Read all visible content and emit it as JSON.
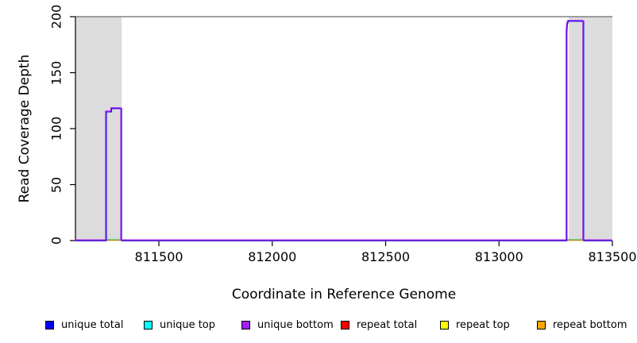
{
  "chart_data": {
    "type": "line",
    "title": "",
    "xlabel": "Coordinate in Reference Genome",
    "ylabel": "Read Coverage Depth",
    "xlim": [
      811132,
      813500
    ],
    "ylim": [
      0,
      200
    ],
    "x_ticks": [
      {
        "value": 811500,
        "label": "811500"
      },
      {
        "value": 812000,
        "label": "812000"
      },
      {
        "value": 812500,
        "label": "812500"
      },
      {
        "value": 813000,
        "label": "813000"
      },
      {
        "value": 813500,
        "label": "813500"
      }
    ],
    "y_ticks": [
      {
        "value": 0,
        "label": "0"
      },
      {
        "value": 50,
        "label": "50"
      },
      {
        "value": 100,
        "label": "100"
      },
      {
        "value": 150,
        "label": "150"
      },
      {
        "value": 200,
        "label": "200"
      }
    ],
    "grid": false,
    "legend_position": "bottom",
    "axis_color": "#000000",
    "shaded_regions": [
      {
        "x1": 811132,
        "x2": 811336,
        "y1": 0,
        "y2": 200,
        "color": "#dcdcdc"
      },
      {
        "x1": 813308,
        "x2": 813500,
        "y1": 0,
        "y2": 200,
        "color": "#dcdcdc"
      }
    ],
    "hline": {
      "y": 200,
      "color": "#808080",
      "width": 1.6
    },
    "series": [
      {
        "name": "unique total",
        "color": "#0000ff",
        "line_width": 1.4,
        "offset": [
          0,
          0
        ],
        "segments": [
          [
            [
              811132,
              0
            ],
            [
              811268,
              0
            ],
            [
              811268,
              115
            ],
            [
              811291,
              115
            ],
            [
              811291,
              118
            ],
            [
              811335,
              118
            ],
            [
              811335,
              0
            ],
            [
              813299,
              0
            ],
            [
              813299,
              186
            ],
            [
              813301,
              193
            ],
            [
              813306,
              196
            ],
            [
              813373,
              196
            ],
            [
              813373,
              0
            ],
            [
              813500,
              0
            ]
          ]
        ]
      },
      {
        "name": "unique top",
        "color": "#00ffff",
        "render_color": "#84cc84",
        "line_width": 1.4,
        "offset": [
          0,
          0
        ],
        "segments": [
          [
            [
              811268,
              1
            ],
            [
              811335,
              1
            ]
          ],
          [
            [
              813299,
              1
            ],
            [
              813373,
              1
            ]
          ]
        ]
      },
      {
        "name": "unique bottom",
        "color": "#a020f0",
        "line_width": 1.4,
        "offset": [
          -0.8,
          -0.8
        ],
        "segments": [
          [
            [
              811132,
              0
            ],
            [
              811268,
              0
            ],
            [
              811268,
              115
            ],
            [
              811291,
              115
            ],
            [
              811291,
              118
            ],
            [
              811335,
              118
            ],
            [
              811335,
              0
            ],
            [
              813299,
              0
            ],
            [
              813299,
              186
            ],
            [
              813301,
              193
            ],
            [
              813306,
              196
            ],
            [
              813373,
              196
            ],
            [
              813373,
              0
            ],
            [
              813500,
              0
            ]
          ]
        ]
      },
      {
        "name": "repeat total",
        "color": "#ff0000",
        "line_width": 1.2,
        "offset": [
          0,
          0.4
        ],
        "segments": [
          [
            [
              811132,
              0
            ],
            [
              813500,
              0
            ]
          ]
        ]
      },
      {
        "name": "repeat top",
        "color": "#ffff00",
        "render_color": "#efe9a8",
        "line_width": 1.2,
        "offset": [
          0,
          0.6
        ],
        "segments": [
          [
            [
              811268,
              0
            ],
            [
              811335,
              0
            ]
          ],
          [
            [
              813299,
              0
            ],
            [
              813373,
              0
            ]
          ]
        ]
      },
      {
        "name": "repeat bottom",
        "color": "#ffa500",
        "line_width": 1.2,
        "offset": [
          0,
          0.4
        ],
        "segments": [
          [
            [
              811132,
              0
            ],
            [
              813500,
              0
            ]
          ]
        ]
      }
    ],
    "draw_order": [
      "repeat total",
      "repeat bottom",
      "repeat top",
      "unique top",
      "unique total",
      "unique bottom"
    ],
    "legend": [
      {
        "label": "unique total",
        "color": "#0000ff"
      },
      {
        "label": "unique top",
        "color": "#00ffff"
      },
      {
        "label": "unique bottom",
        "color": "#a020f0"
      },
      {
        "label": "repeat total",
        "color": "#ff0000"
      },
      {
        "label": "repeat top",
        "color": "#ffff00"
      },
      {
        "label": "repeat bottom",
        "color": "#ffa500"
      }
    ]
  }
}
